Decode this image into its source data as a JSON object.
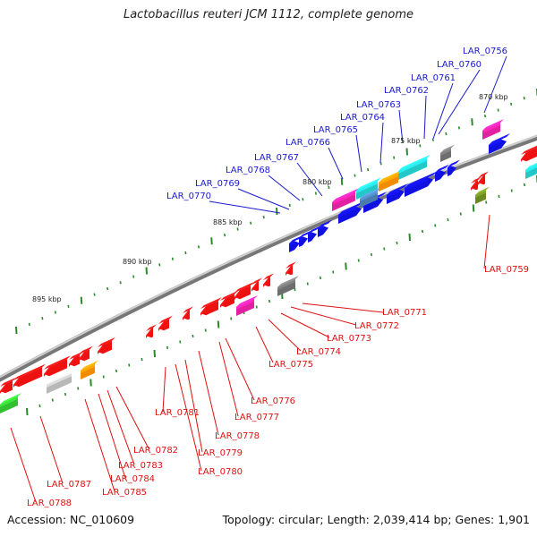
{
  "title": "Lactobacillus reuteri JCM 1112, complete genome",
  "footer": {
    "accession": "Accession: NC_010609",
    "topology": "Topology: circular; Length: 2,039,414 bp; Genes: 1,901"
  },
  "scale_labels": [
    "870 kbp",
    "875 kbp",
    "880 kbp",
    "885 kbp",
    "890 kbp",
    "895 kbp"
  ],
  "gene_labels_top": [
    "LAR_0756",
    "LAR_0760",
    "LAR_0761",
    "LAR_0762",
    "LAR_0763",
    "LAR_0764",
    "LAR_0765",
    "LAR_0766",
    "LAR_0767",
    "LAR_0768",
    "LAR_0769",
    "LAR_0770"
  ],
  "gene_labels_bottom": [
    "LAR_0759",
    "LAR_0771",
    "LAR_0772",
    "LAR_0773",
    "LAR_0774",
    "LAR_0775",
    "LAR_0776",
    "LAR_0777",
    "LAR_0778",
    "LAR_0779",
    "LAR_0780",
    "LAR_0781",
    "LAR_0782",
    "LAR_0783",
    "LAR_0784",
    "LAR_0785",
    "LAR_0787",
    "LAR_0788"
  ],
  "colors": {
    "forward_label": "#1a1acc",
    "reverse_label": "#dd1111",
    "backbone": "#8a8a8a",
    "tick": "#2a8a2a",
    "blue": "#1010e0",
    "red": "#ee1111",
    "cyan": "#22c8c8",
    "magenta": "#e020a0",
    "orange": "#f08c00",
    "gray": "#6e6e6e",
    "lightgray": "#b8b8b8",
    "olive": "#6a8a20",
    "green": "#30c030",
    "steel": "#4a7cb0"
  }
}
